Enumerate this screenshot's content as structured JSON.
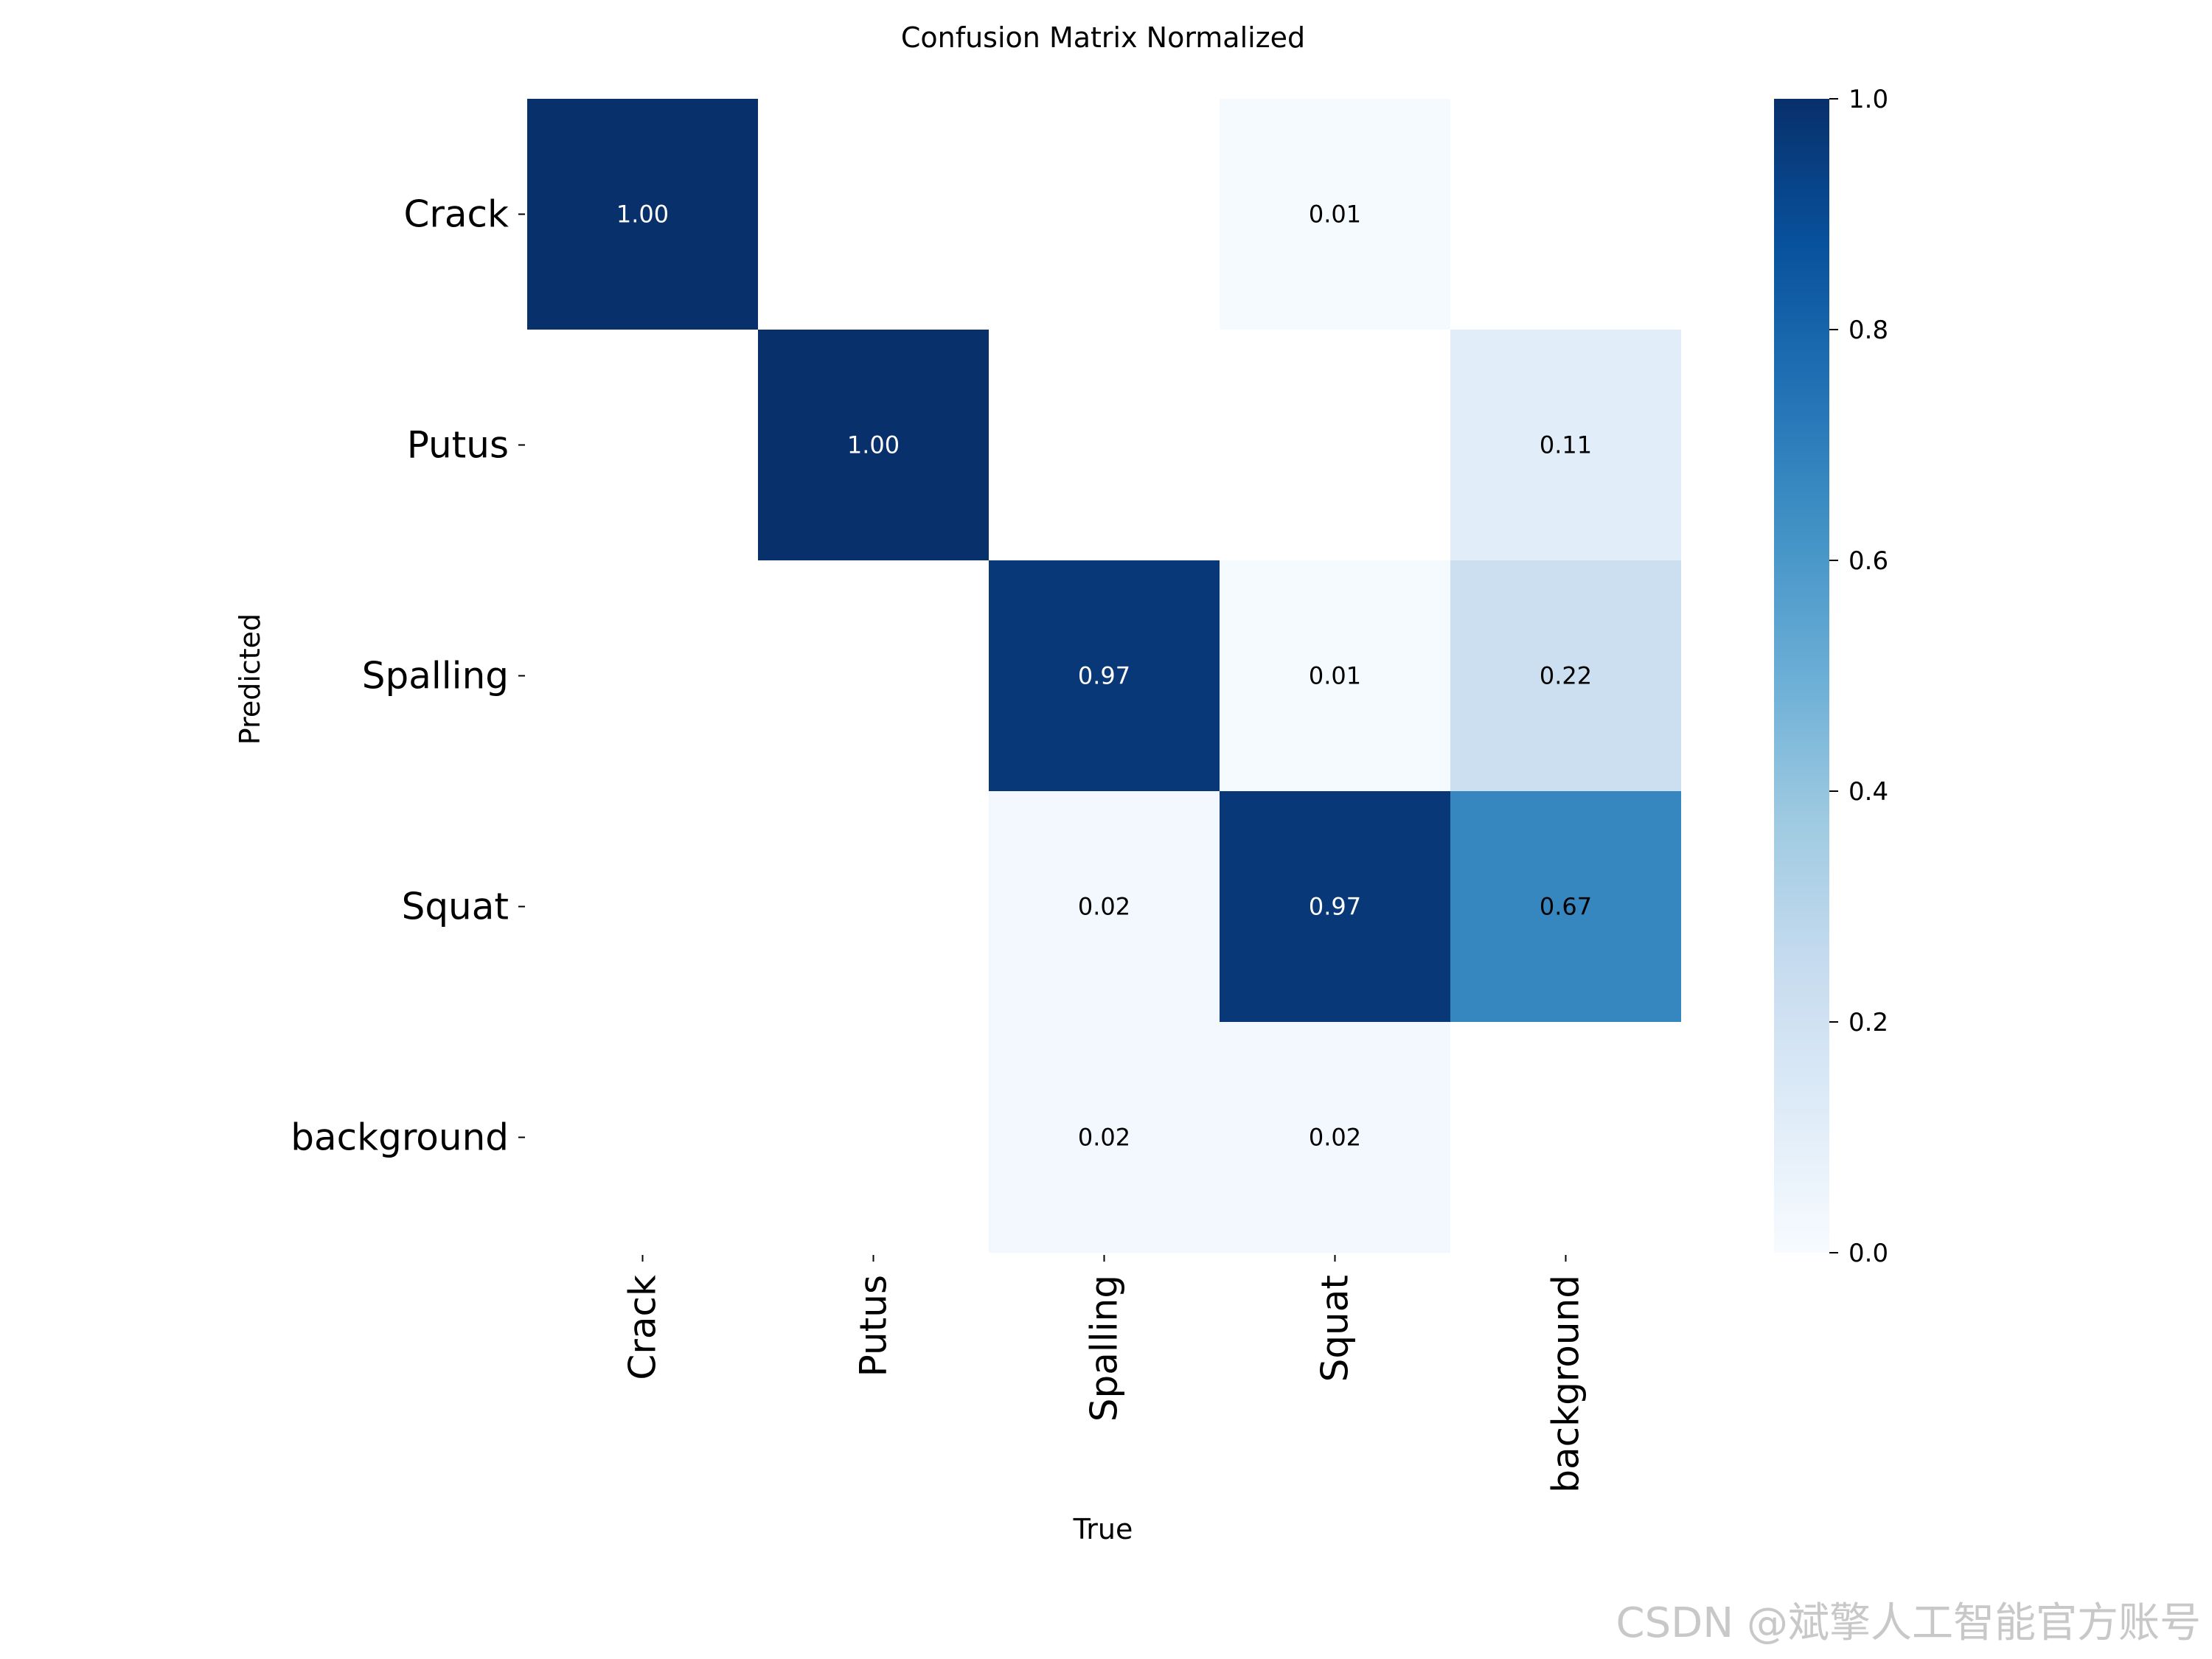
{
  "chart_data": {
    "type": "heatmap",
    "title": "Confusion Matrix Normalized",
    "xlabel": "True",
    "ylabel": "Predicted",
    "x_categories": [
      "Crack",
      "Putus",
      "Spalling",
      "Squat",
      "background"
    ],
    "y_categories": [
      "Crack",
      "Putus",
      "Spalling",
      "Squat",
      "background"
    ],
    "values": [
      [
        1.0,
        null,
        null,
        0.01,
        null
      ],
      [
        null,
        1.0,
        null,
        null,
        0.11
      ],
      [
        null,
        null,
        0.97,
        0.01,
        0.22
      ],
      [
        null,
        null,
        0.02,
        0.97,
        0.67
      ],
      [
        null,
        null,
        0.02,
        0.02,
        null
      ]
    ],
    "value_format": "0.00",
    "colormap": "Blues",
    "colorbar": {
      "range": [
        0.0,
        1.0
      ],
      "ticks": [
        0.0,
        0.2,
        0.4,
        0.6,
        0.8,
        1.0
      ],
      "tick_labels": [
        "0.0",
        "0.2",
        "0.4",
        "0.6",
        "0.8",
        "1.0"
      ]
    }
  },
  "watermark": "CSDN @斌擎人工智能官方账号"
}
